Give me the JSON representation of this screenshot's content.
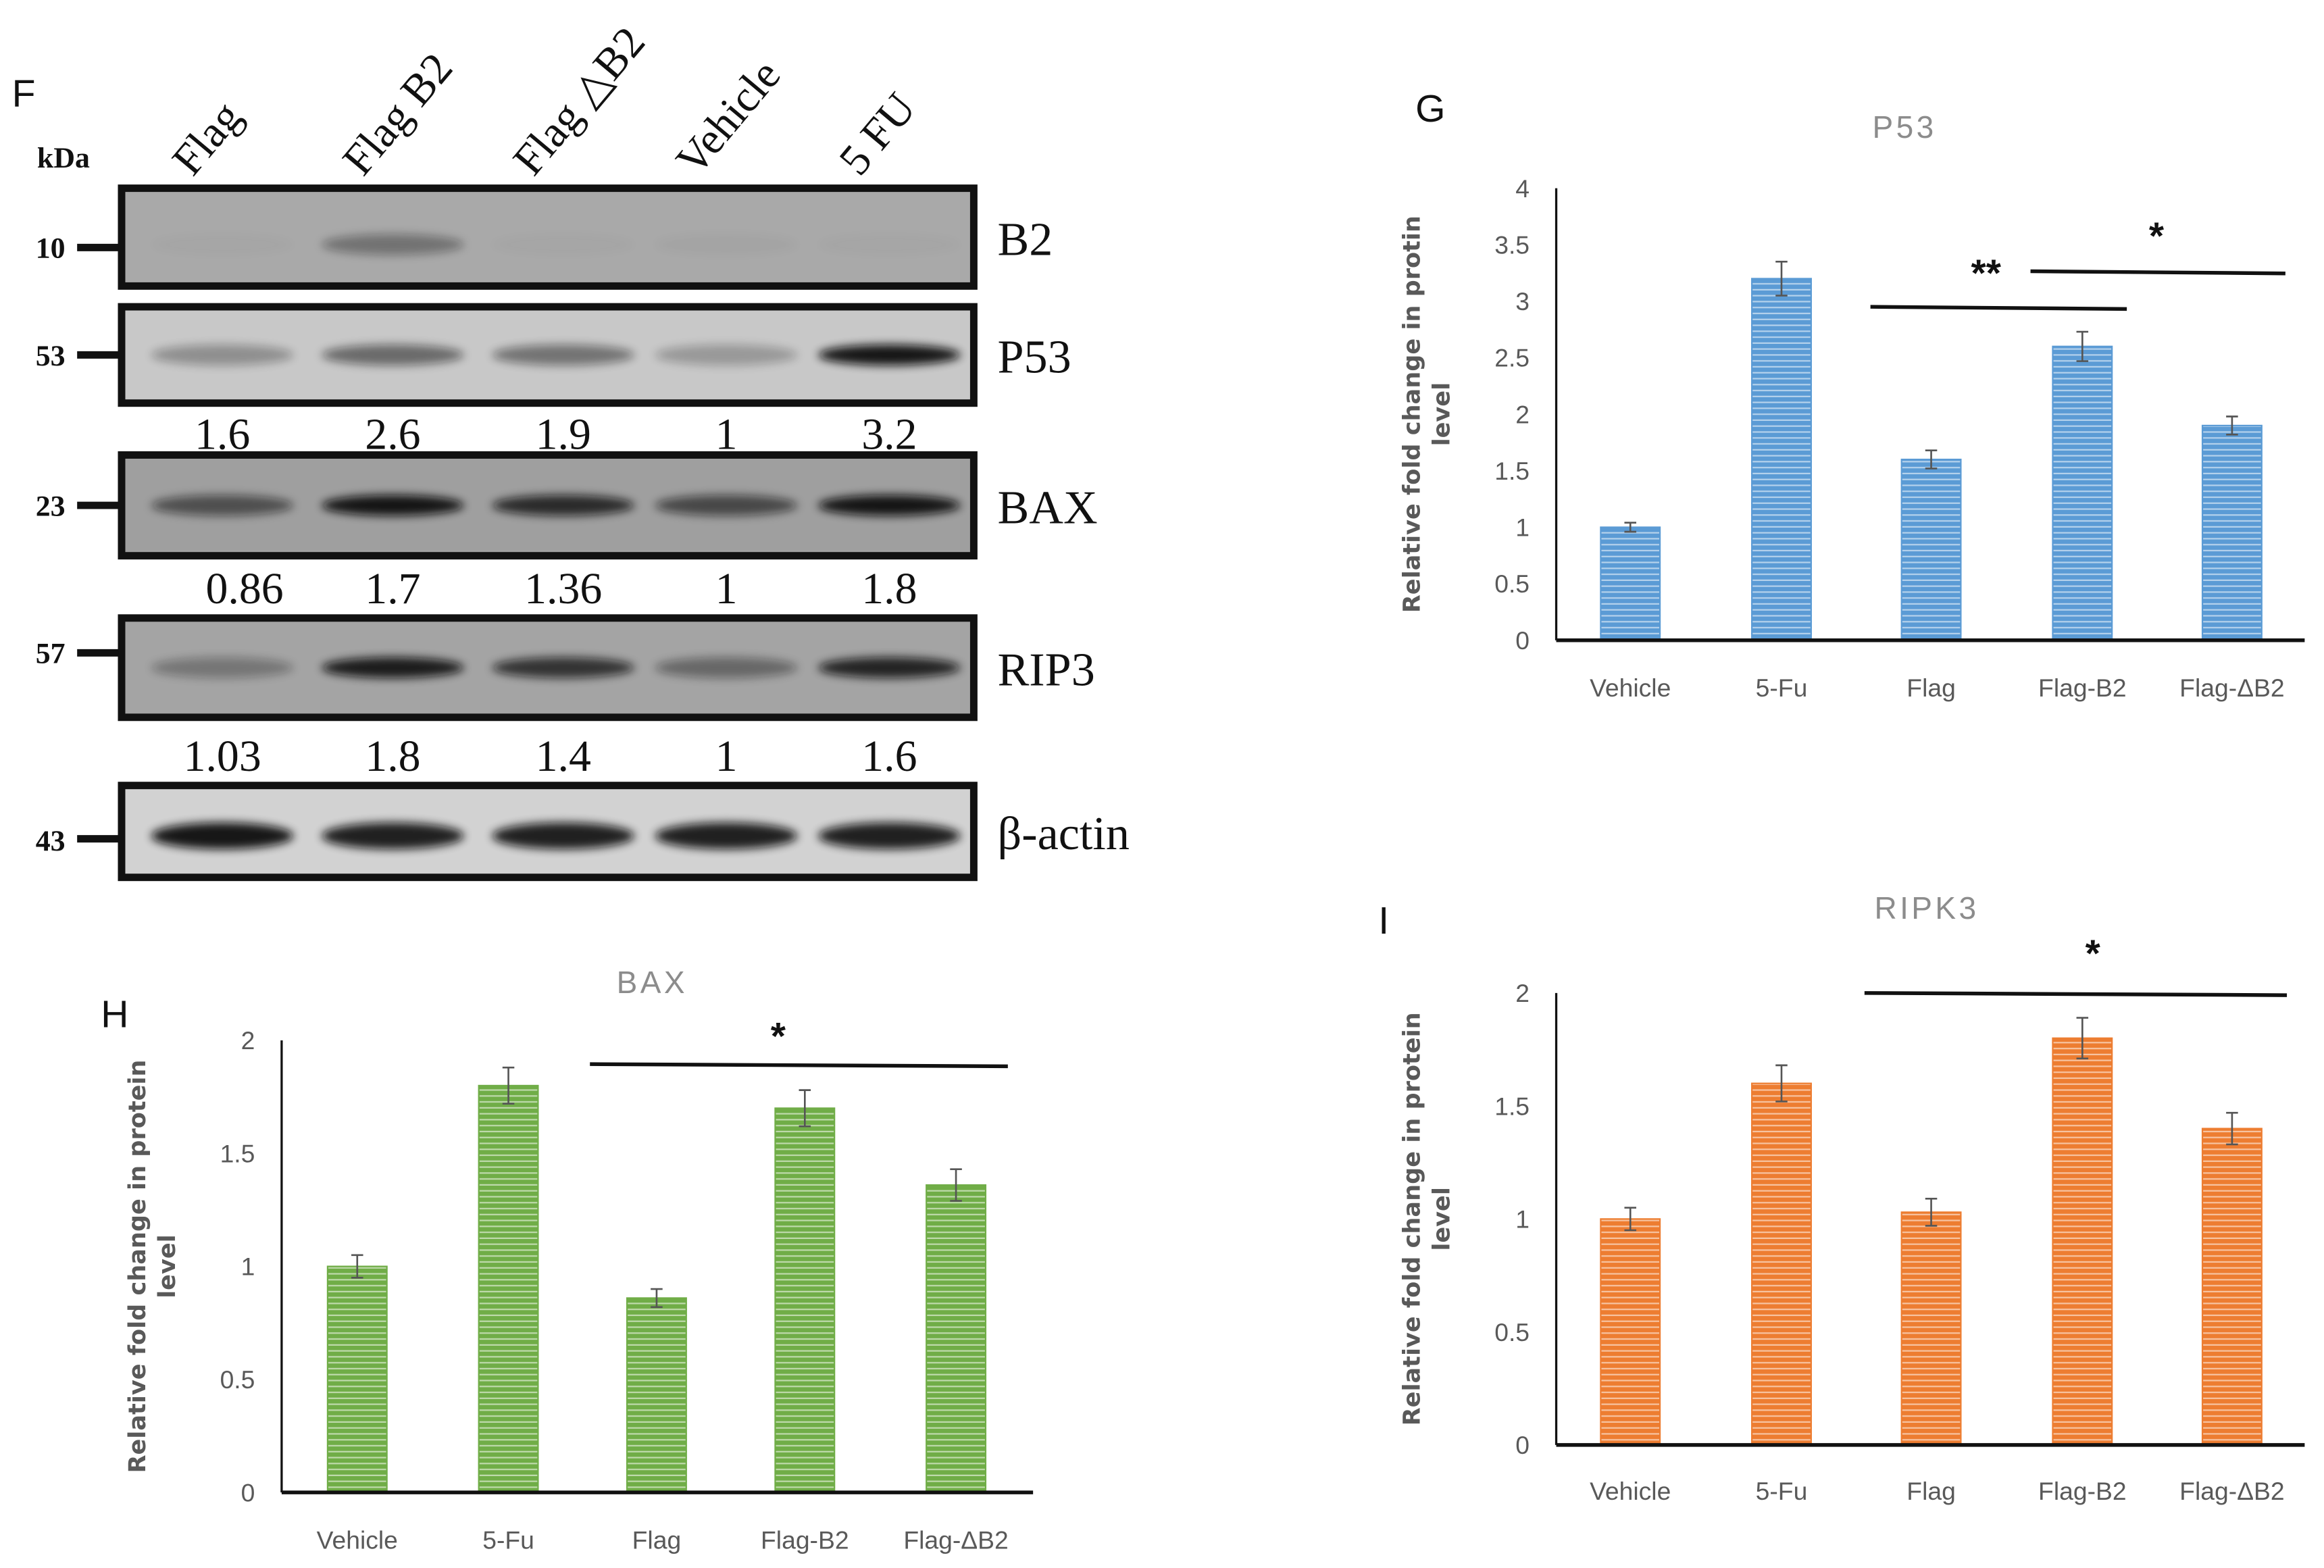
{
  "blot": {
    "panel_label": "F",
    "kda_label": "kDa",
    "lanes": [
      "Flag",
      "Flag B2",
      "Flag △B2",
      "Vehicle",
      "5 FU"
    ],
    "rows": [
      {
        "protein": "B2",
        "kda": "10",
        "quant": null
      },
      {
        "protein": "P53",
        "kda": "53",
        "quant": [
          "1.6",
          "2.6",
          "1.9",
          "1",
          "3.2"
        ]
      },
      {
        "protein": "BAX",
        "kda": "23",
        "quant": [
          "0.86",
          "1.7",
          "1.36",
          "1",
          "1.8"
        ]
      },
      {
        "protein": "RIP3",
        "kda": "57",
        "quant": [
          "1.03",
          "1.8",
          "1.4",
          "1",
          "1.6"
        ]
      },
      {
        "protein": "β-actin",
        "kda": "43",
        "quant": null
      }
    ]
  },
  "chart_data": [
    {
      "panel_label": "G",
      "type": "bar",
      "title": "P53",
      "ylabel": [
        "Relative fold change in protin",
        "level"
      ],
      "categories": [
        "Vehicle",
        "5-Fu",
        "Flag",
        "Flag-B2",
        "Flag-ΔB2"
      ],
      "values": [
        1,
        3.2,
        1.6,
        2.6,
        1.9
      ],
      "errors": [
        0.04,
        0.15,
        0.08,
        0.13,
        0.08
      ],
      "ylim": [
        0,
        4
      ],
      "yticks": [
        "0",
        "0.5",
        "1",
        "1.5",
        "2",
        "2.5",
        "3",
        "3.5",
        "4"
      ],
      "color": "#5b9bd5",
      "significance": [
        {
          "from": "Flag",
          "to": "Flag-B2",
          "label": "**"
        },
        {
          "from": "Flag-B2",
          "to": "Flag-ΔB2",
          "label": "*"
        }
      ]
    },
    {
      "panel_label": "H",
      "type": "bar",
      "title": "BAX",
      "ylabel": [
        "Relative fold change in protein",
        "level"
      ],
      "categories": [
        "Vehicle",
        "5-Fu",
        "Flag",
        "Flag-B2",
        "Flag-ΔB2"
      ],
      "values": [
        1,
        1.8,
        0.86,
        1.7,
        1.36
      ],
      "errors": [
        0.05,
        0.08,
        0.04,
        0.08,
        0.07
      ],
      "ylim": [
        0,
        2
      ],
      "yticks": [
        "0",
        "0.5",
        "1",
        "1.5",
        "2"
      ],
      "color": "#70ad47",
      "significance": [
        {
          "from": "Flag",
          "to": "Flag-ΔB2",
          "label": "*"
        }
      ]
    },
    {
      "panel_label": "I",
      "type": "bar",
      "title": "RIPK3",
      "ylabel": [
        "Relative fold change in protein",
        "level"
      ],
      "categories": [
        "Vehicle",
        "5-Fu",
        "Flag",
        "Flag-B2",
        "Flag-ΔB2"
      ],
      "values": [
        1,
        1.6,
        1.03,
        1.8,
        1.4
      ],
      "errors": [
        0.05,
        0.08,
        0.06,
        0.09,
        0.07
      ],
      "ylim": [
        0,
        2
      ],
      "yticks": [
        "0",
        "0.5",
        "1",
        "1.5",
        "2"
      ],
      "color": "#ed7d31",
      "significance": [
        {
          "from": "Flag",
          "to": "Flag-ΔB2",
          "label": "*"
        }
      ]
    }
  ]
}
